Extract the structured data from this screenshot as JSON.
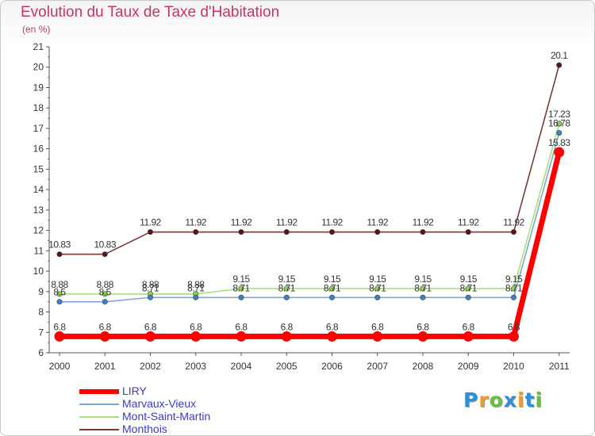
{
  "chart_data": {
    "type": "line",
    "title": "Evolution du Taux de Taxe d'Habitation",
    "subtitle": "(en %)",
    "xlabel": "",
    "ylabel": "",
    "categories": [
      "2000",
      "2001",
      "2002",
      "2003",
      "2004",
      "2005",
      "2006",
      "2007",
      "2008",
      "2009",
      "2010",
      "2011"
    ],
    "ylim": [
      6,
      21
    ],
    "yticks": [
      6,
      7,
      8,
      9,
      10,
      11,
      12,
      13,
      14,
      15,
      16,
      17,
      18,
      19,
      20,
      21
    ],
    "grid": false,
    "series": [
      {
        "name": "LIRY",
        "color": "#ff0000",
        "emphasis": true,
        "values": [
          6.8,
          6.8,
          6.8,
          6.8,
          6.8,
          6.8,
          6.8,
          6.8,
          6.8,
          6.8,
          6.8,
          15.83
        ],
        "labels": [
          "6.8",
          "6.8",
          "6.8",
          "6.8",
          "6.8",
          "6.8",
          "6.8",
          "6.8",
          "6.8",
          "6.8",
          "6.8",
          "15.83"
        ]
      },
      {
        "name": "Marvaux-Vieux",
        "color": "#7ea6d0",
        "marker": "#3b82c4",
        "values": [
          8.5,
          8.5,
          8.71,
          8.71,
          8.71,
          8.71,
          8.71,
          8.71,
          8.71,
          8.71,
          8.71,
          16.78
        ],
        "labels": [
          "8.5",
          "8.5",
          "8.71",
          "8.71",
          "8.71",
          "8.71",
          "8.71",
          "8.71",
          "8.71",
          "8.71",
          "8.71",
          "16.78"
        ]
      },
      {
        "name": "Mont-Saint-Martin",
        "color": "#a8e07c",
        "marker": "#8ed44a",
        "values": [
          8.88,
          8.88,
          8.88,
          8.88,
          9.15,
          9.15,
          9.15,
          9.15,
          9.15,
          9.15,
          9.15,
          17.23
        ],
        "labels": [
          "8.88",
          "8.88",
          "8.88",
          "8.88",
          "9.15",
          "9.15",
          "9.15",
          "9.15",
          "9.15",
          "9.15",
          "9.15",
          "17.23"
        ]
      },
      {
        "name": "Monthois",
        "color": "#7a3a3a",
        "marker": "#5a1616",
        "values": [
          10.83,
          10.83,
          11.92,
          11.92,
          11.92,
          11.92,
          11.92,
          11.92,
          11.92,
          11.92,
          11.92,
          20.1
        ],
        "labels": [
          "10.83",
          "10.83",
          "11.92",
          "11.92",
          "11.92",
          "11.92",
          "11.92",
          "11.92",
          "11.92",
          "11.92",
          "11.92",
          "20.1"
        ]
      }
    ],
    "legend_position": "bottom-left"
  },
  "logo": {
    "letters": [
      "P",
      "r",
      "o",
      "x",
      "i",
      "t",
      "i"
    ],
    "colors": [
      "#2f8fd8",
      "#f29a2e",
      "#6bbd45",
      "#2f8fd8",
      "#f29a2e",
      "#2f8fd8",
      "#6bbd45"
    ]
  }
}
